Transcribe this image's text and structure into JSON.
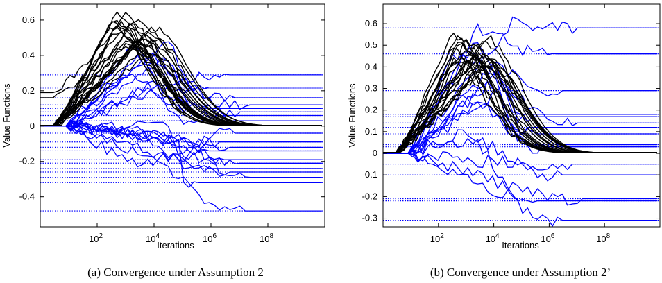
{
  "chart_data": [
    {
      "type": "line",
      "caption": "(a) Convergence under Assumption 2",
      "xlabel": "Iterations",
      "ylabel": "Value Functions",
      "xscale": "log",
      "xlim": [
        1,
        10000000000.0
      ],
      "ylim": [
        -0.57,
        0.69
      ],
      "xticks": [
        100,
        10000,
        1000000,
        100000000
      ],
      "xtick_labels": [
        {
          "base": "10",
          "exp": "2"
        },
        {
          "base": "10",
          "exp": "4"
        },
        {
          "base": "10",
          "exp": "6"
        },
        {
          "base": "10",
          "exp": "8"
        }
      ],
      "yticks": [
        -0.4,
        -0.2,
        0,
        0.2,
        0.4,
        0.6
      ],
      "ytick_labels": [
        "-0.4",
        "-0.2",
        "0",
        "0.2",
        "0.4",
        "0.6"
      ],
      "grid": false,
      "colors": {
        "blue": "#0000ff",
        "black": "#000000"
      },
      "blue_final_values": [
        0.29,
        0.22,
        0.21,
        0.16,
        0.12,
        0.1,
        0.08,
        0.06,
        0.03,
        -0.04,
        -0.09,
        -0.12,
        -0.14,
        -0.19,
        -0.21,
        -0.24,
        -0.26,
        -0.29,
        -0.32,
        -0.48
      ],
      "black_count": 24
    },
    {
      "type": "line",
      "caption": "(b) Convergence under Assumption 2’",
      "xlabel": "Iterations",
      "ylabel": "Value Functions",
      "xscale": "log",
      "xlim": [
        1,
        10000000000.0
      ],
      "ylim": [
        -0.34,
        0.69
      ],
      "xticks": [
        100,
        10000,
        1000000,
        100000000
      ],
      "xtick_labels": [
        {
          "base": "10",
          "exp": "2"
        },
        {
          "base": "10",
          "exp": "4"
        },
        {
          "base": "10",
          "exp": "6"
        },
        {
          "base": "10",
          "exp": "8"
        }
      ],
      "yticks": [
        -0.3,
        -0.2,
        -0.1,
        0,
        0.1,
        0.2,
        0.3,
        0.4,
        0.5,
        0.6
      ],
      "ytick_labels": [
        "-0.3",
        "-0.2",
        "-0.1",
        "0",
        "0.1",
        "0.2",
        "0.3",
        "0.4",
        "0.5",
        "0.6"
      ],
      "grid": false,
      "colors": {
        "blue": "#0000ff",
        "black": "#000000"
      },
      "blue_final_values": [
        0.58,
        0.46,
        0.29,
        0.18,
        0.17,
        0.14,
        0.12,
        0.09,
        0.04,
        0.03,
        -0.05,
        -0.1,
        -0.21,
        -0.22,
        -0.31
      ],
      "black_count": 22
    }
  ]
}
